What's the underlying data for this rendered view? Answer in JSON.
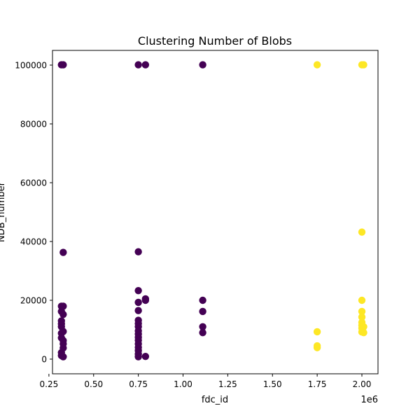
{
  "chart_data": {
    "type": "scatter",
    "title": "Clustering Number of Blobs",
    "xlabel": "fdc_id",
    "ylabel": "NDB_number",
    "x_offset_label": "1e6",
    "xlim": [
      0.27,
      2.09
    ],
    "ylim": [
      -5000,
      105000
    ],
    "x_ticks": [
      0.25,
      0.5,
      0.75,
      1.0,
      1.25,
      1.5,
      1.75,
      2.0
    ],
    "x_tick_labels": [
      "0.25",
      "0.50",
      "0.75",
      "1.00",
      "1.25",
      "1.50",
      "1.75",
      "2.00"
    ],
    "y_ticks": [
      0,
      20000,
      40000,
      60000,
      80000,
      100000
    ],
    "y_tick_labels": [
      "0",
      "20000",
      "40000",
      "60000",
      "80000",
      "100000"
    ],
    "grid": false,
    "colors": {
      "cluster_0": "#440154",
      "cluster_1": "#fde725"
    },
    "series": [
      {
        "name": "cluster_0",
        "points": [
          [
            0.32,
            100100
          ],
          [
            0.33,
            100100
          ],
          [
            0.32,
            1200
          ],
          [
            0.33,
            800
          ],
          [
            0.32,
            2200
          ],
          [
            0.33,
            3800
          ],
          [
            0.33,
            5200
          ],
          [
            0.33,
            6300
          ],
          [
            0.32,
            7200
          ],
          [
            0.32,
            8800
          ],
          [
            0.33,
            9400
          ],
          [
            0.32,
            11000
          ],
          [
            0.32,
            12000
          ],
          [
            0.32,
            13000
          ],
          [
            0.33,
            15200
          ],
          [
            0.32,
            16200
          ],
          [
            0.32,
            18000
          ],
          [
            0.33,
            18000
          ],
          [
            0.33,
            36300
          ],
          [
            0.75,
            100100
          ],
          [
            0.79,
            100100
          ],
          [
            0.75,
            800
          ],
          [
            0.75,
            1700
          ],
          [
            0.75,
            2900
          ],
          [
            0.75,
            4000
          ],
          [
            0.75,
            5200
          ],
          [
            0.75,
            6400
          ],
          [
            0.75,
            7400
          ],
          [
            0.75,
            8500
          ],
          [
            0.75,
            9600
          ],
          [
            0.75,
            11000
          ],
          [
            0.75,
            12100
          ],
          [
            0.75,
            13200
          ],
          [
            0.75,
            16500
          ],
          [
            0.75,
            19300
          ],
          [
            0.75,
            23300
          ],
          [
            0.75,
            36500
          ],
          [
            0.79,
            20500
          ],
          [
            0.79,
            20000
          ],
          [
            0.79,
            900
          ],
          [
            1.11,
            100100
          ],
          [
            1.11,
            20000
          ],
          [
            1.11,
            16200
          ],
          [
            1.11,
            11000
          ],
          [
            1.11,
            9000
          ]
        ]
      },
      {
        "name": "cluster_1",
        "points": [
          [
            1.75,
            100100
          ],
          [
            2.0,
            100100
          ],
          [
            2.01,
            100100
          ],
          [
            1.75,
            9300
          ],
          [
            1.75,
            4500
          ],
          [
            1.75,
            3900
          ],
          [
            2.0,
            43200
          ],
          [
            2.0,
            20000
          ],
          [
            2.0,
            16200
          ],
          [
            2.0,
            14300
          ],
          [
            2.0,
            12500
          ],
          [
            2.0,
            11500
          ],
          [
            2.01,
            11000
          ],
          [
            2.0,
            10500
          ],
          [
            2.0,
            9200
          ],
          [
            2.01,
            9000
          ]
        ]
      }
    ]
  }
}
